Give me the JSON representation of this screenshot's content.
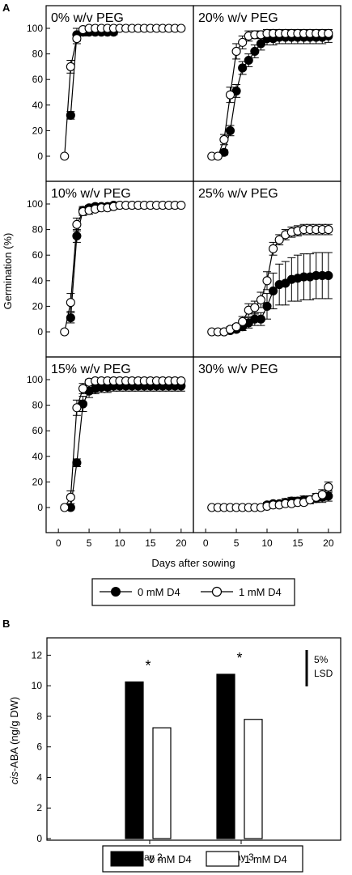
{
  "figure": {
    "panel_a_letter": "A",
    "panel_b_letter": "B"
  },
  "chart_data": [
    {
      "type": "line",
      "panel": "A",
      "ylabel": "Germination (%)",
      "xlabel": "Days after sowing",
      "xlim": [
        -2,
        22
      ],
      "ylim": [
        -10,
        110
      ],
      "yticks": [
        0,
        20,
        40,
        60,
        80,
        100
      ],
      "xticks": [
        0,
        5,
        10,
        15,
        20
      ],
      "legend": {
        "placement": "bottom",
        "entries": [
          {
            "label": "0 mM D4",
            "marker": "filled"
          },
          {
            "label": "1 mM D4",
            "marker": "open"
          }
        ]
      },
      "panels": [
        {
          "title": "0% w/v PEG",
          "series": [
            {
              "name": "0 mM D4",
              "x": [
                2,
                3,
                4,
                5,
                6,
                7,
                8,
                9
              ],
              "y": [
                32,
                95,
                97,
                97,
                97,
                97,
                97,
                97
              ],
              "err": [
                3,
                5,
                3,
                2,
                2,
                2,
                2,
                2
              ]
            },
            {
              "name": "1 mM D4",
              "x": [
                1,
                2,
                3,
                4,
                5,
                6,
                7,
                8,
                9,
                10,
                11,
                12,
                13,
                14,
                15,
                16,
                17,
                18,
                19,
                20
              ],
              "y": [
                0,
                70,
                92,
                99,
                100,
                100,
                100,
                100,
                100,
                100,
                100,
                100,
                100,
                100,
                100,
                100,
                100,
                100,
                100,
                100
              ],
              "err": [
                0,
                5,
                4,
                1,
                0,
                0,
                0,
                0,
                0,
                0,
                0,
                0,
                0,
                0,
                0,
                0,
                0,
                0,
                0,
                0
              ]
            }
          ]
        },
        {
          "title": "20% w/v PEG",
          "series": [
            {
              "name": "0 mM D4",
              "x": [
                3,
                4,
                5,
                6,
                7,
                8,
                9,
                10,
                11,
                12,
                13,
                14,
                15,
                16,
                17,
                18,
                19,
                20
              ],
              "y": [
                3,
                20,
                51,
                69,
                75,
                82,
                88,
                92,
                92,
                93,
                93,
                93,
                93,
                93,
                93,
                93,
                93,
                94
              ],
              "err": [
                2,
                4,
                5,
                5,
                5,
                5,
                5,
                5,
                5,
                5,
                5,
                5,
                5,
                5,
                5,
                5,
                5,
                5
              ]
            },
            {
              "name": "1 mM D4",
              "x": [
                1,
                2,
                3,
                4,
                5,
                6,
                7,
                8,
                9,
                10,
                11,
                12,
                13,
                14,
                15,
                16,
                17,
                18,
                19,
                20
              ],
              "y": [
                0,
                0,
                13,
                48,
                82,
                89,
                94,
                95,
                95,
                96,
                96,
                96,
                96,
                96,
                96,
                96,
                96,
                96,
                96,
                96
              ],
              "err": [
                0,
                0,
                4,
                6,
                6,
                5,
                4,
                3,
                3,
                3,
                3,
                3,
                3,
                3,
                3,
                3,
                3,
                3,
                3,
                3
              ]
            }
          ]
        },
        {
          "title": "10% w/v PEG",
          "series": [
            {
              "name": "0 mM D4",
              "x": [
                2,
                3,
                4,
                5,
                6,
                7,
                8,
                9
              ],
              "y": [
                11,
                75,
                95,
                97,
                98,
                98,
                98,
                99
              ],
              "err": [
                4,
                5,
                3,
                2,
                2,
                2,
                2,
                2
              ]
            },
            {
              "name": "1 mM D4",
              "x": [
                1,
                2,
                3,
                4,
                5,
                6,
                7,
                8,
                9,
                10,
                11,
                12,
                13,
                14,
                15,
                16,
                17,
                18,
                19,
                20
              ],
              "y": [
                0,
                23,
                84,
                94,
                95,
                96,
                97,
                97,
                98,
                99,
                99,
                99,
                99,
                99,
                99,
                99,
                99,
                99,
                99,
                99
              ],
              "err": [
                0,
                7,
                5,
                3,
                3,
                2,
                2,
                2,
                2,
                1,
                1,
                1,
                1,
                1,
                1,
                1,
                1,
                1,
                1,
                1
              ]
            }
          ]
        },
        {
          "title": "25% w/v PEG",
          "series": [
            {
              "name": "0 mM D4",
              "x": [
                3,
                4,
                5,
                6,
                7,
                8,
                9,
                10,
                11,
                12,
                13,
                14,
                15,
                16,
                17,
                18,
                19,
                20
              ],
              "y": [
                0,
                1,
                2,
                4,
                7,
                10,
                10,
                20,
                32,
                37,
                38,
                41,
                42,
                43,
                43,
                44,
                44,
                44
              ],
              "err": [
                0,
                1,
                2,
                3,
                4,
                5,
                5,
                10,
                14,
                16,
                17,
                17,
                18,
                18,
                18,
                18,
                18,
                18
              ]
            },
            {
              "name": "1 mM D4",
              "x": [
                1,
                2,
                3,
                4,
                5,
                6,
                7,
                8,
                9,
                10,
                11,
                12,
                13,
                14,
                15,
                16,
                17,
                18,
                19,
                20
              ],
              "y": [
                0,
                0,
                0,
                2,
                4,
                8,
                17,
                19,
                25,
                40,
                65,
                72,
                76,
                78,
                79,
                80,
                80,
                80,
                80,
                80
              ],
              "err": [
                0,
                0,
                0,
                2,
                2,
                4,
                5,
                5,
                6,
                7,
                5,
                4,
                4,
                4,
                4,
                4,
                4,
                4,
                4,
                4
              ]
            }
          ]
        },
        {
          "title": "15% w/v PEG",
          "series": [
            {
              "name": "0 mM D4",
              "x": [
                2,
                3,
                4,
                5,
                6,
                7,
                8,
                9,
                10,
                11,
                12,
                13,
                14,
                15,
                16,
                17,
                18,
                19,
                20
              ],
              "y": [
                0,
                35,
                81,
                91,
                93,
                94,
                94,
                95,
                95,
                95,
                95,
                95,
                95,
                95,
                95,
                95,
                95,
                95,
                95
              ],
              "err": [
                0,
                3,
                6,
                5,
                4,
                4,
                4,
                4,
                4,
                4,
                4,
                4,
                4,
                4,
                4,
                4,
                4,
                4,
                4
              ]
            },
            {
              "name": "1 mM D4",
              "x": [
                1,
                2,
                3,
                4,
                5,
                6,
                7,
                8,
                9,
                10,
                11,
                12,
                13,
                14,
                15,
                16,
                17,
                18,
                19,
                20
              ],
              "y": [
                0,
                8,
                78,
                93,
                98,
                99,
                99,
                99,
                99,
                99,
                99,
                99,
                99,
                99,
                99,
                99,
                99,
                99,
                99,
                99
              ],
              "err": [
                0,
                5,
                6,
                4,
                2,
                1,
                1,
                1,
                1,
                1,
                1,
                1,
                1,
                1,
                1,
                1,
                1,
                1,
                1,
                1
              ]
            }
          ]
        },
        {
          "title": "30% w/v PEG",
          "series": [
            {
              "name": "0 mM D4",
              "x": [
                10,
                11,
                12,
                13,
                14,
                15,
                16,
                17,
                18,
                19,
                20
              ],
              "y": [
                2,
                3,
                3,
                4,
                5,
                5,
                6,
                6,
                7,
                8,
                9
              ],
              "err": [
                2,
                2,
                2,
                3,
                3,
                3,
                3,
                3,
                3,
                4,
                4
              ]
            },
            {
              "name": "1 mM D4",
              "x": [
                1,
                2,
                3,
                4,
                5,
                6,
                7,
                8,
                9,
                10,
                11,
                12,
                13,
                14,
                15,
                16,
                17,
                18,
                19,
                20
              ],
              "y": [
                0,
                0,
                0,
                0,
                0,
                0,
                0,
                0,
                0,
                1,
                2,
                2,
                3,
                3,
                4,
                4,
                6,
                8,
                10,
                16
              ],
              "err": [
                0,
                0,
                0,
                0,
                0,
                0,
                0,
                0,
                0,
                1,
                1,
                1,
                2,
                2,
                2,
                2,
                3,
                3,
                4,
                4
              ]
            }
          ]
        }
      ]
    },
    {
      "type": "bar",
      "panel": "B",
      "ylabel_italic": "cis",
      "ylabel_rest": "-ABA (ng/g DW)",
      "categories": [
        "Day 2",
        "Day 3"
      ],
      "series": [
        {
          "name": "0 mM D4",
          "values": [
            10.25,
            10.75
          ],
          "color": "#000000"
        },
        {
          "name": "1 mM D4",
          "values": [
            7.25,
            7.8
          ],
          "color": "#ffffff"
        }
      ],
      "ylim": [
        0,
        12.5
      ],
      "yticks": [
        0,
        2,
        4,
        6,
        8,
        10,
        12
      ],
      "significance": [
        "*",
        "*"
      ],
      "lsd": {
        "label_line1": "5%",
        "label_line2": "LSD",
        "value": 2.2
      },
      "legend": {
        "placement": "bottom"
      }
    }
  ]
}
